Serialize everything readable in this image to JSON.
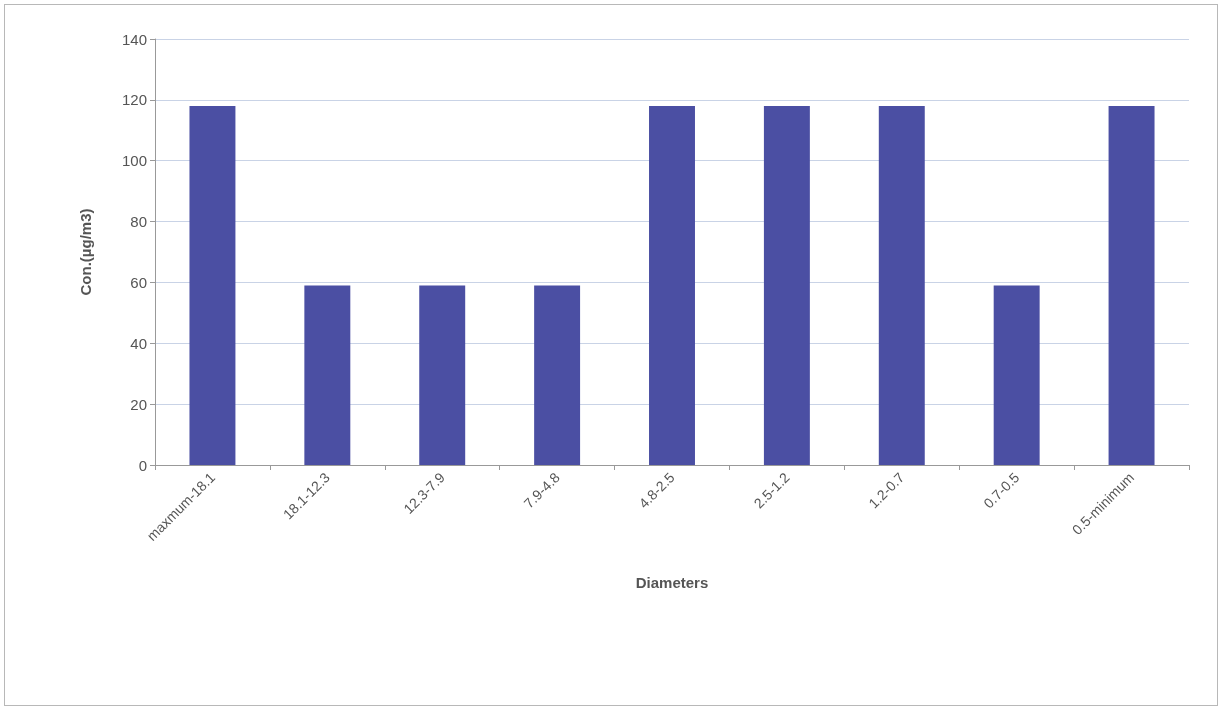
{
  "chart_data": {
    "type": "bar",
    "xlabel": "Diameters",
    "ylabel": "Con.(µg/m3)",
    "categories": [
      "maxmum-18.1",
      "18.1-12.3",
      "12.3-7.9",
      "7.9-4.8",
      "4.8-2.5",
      "2.5-1.2",
      "1.2-0.7",
      "0.7-0.5",
      "0.5-minimum"
    ],
    "values": [
      118,
      59,
      59,
      59,
      118,
      118,
      118,
      59,
      118
    ],
    "color": "#4b4fa3",
    "ylim": [
      0,
      140
    ],
    "yticks": [
      0,
      20,
      40,
      60,
      80,
      100,
      120,
      140
    ],
    "grid": "y"
  }
}
